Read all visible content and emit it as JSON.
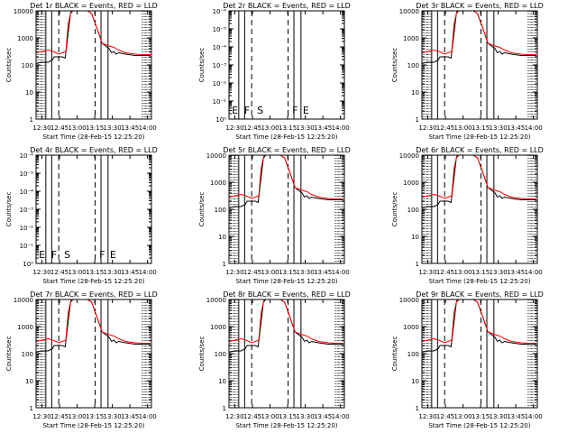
{
  "chart_data": [
    {
      "type": "line",
      "title": "Det 1r BLACK = Events, RED = LLD",
      "xlabel": "Start Time (28-Feb-15 12:25:20)",
      "ylabel": "Counts/sec",
      "xticks": [
        "12:30",
        "12:45",
        "13:00",
        "13:15",
        "13:30",
        "13:45",
        "14:00"
      ],
      "yscale": "log",
      "ylim": [
        1,
        10000
      ],
      "yticks": [
        "1",
        "10",
        "100",
        "1000",
        "10000"
      ],
      "series": [
        {
          "name": "Events",
          "color": "#000000"
        },
        {
          "name": "LLD",
          "color": "#ff0000"
        }
      ],
      "has_data": true,
      "flags": []
    },
    {
      "type": "line",
      "title": "Det 2r BLACK = Events, RED = LLD",
      "xlabel": "Start Time (28-Feb-15 12:25:20)",
      "ylabel": "Counts/sec",
      "xticks": [
        "12:30",
        "12:45",
        "13:00",
        "13:15",
        "13:30",
        "13:45",
        "14:00"
      ],
      "yscale": "log",
      "ylim": [
        1,
        1e-06
      ],
      "yticks": [
        "10⁰",
        "10⁻¹",
        "10⁻²",
        "10⁻³",
        "10⁻⁴",
        "10⁻⁵",
        "10⁻⁶"
      ],
      "series": [],
      "has_data": false,
      "flags": [
        "E",
        "F",
        "S",
        "F",
        "E"
      ]
    },
    {
      "type": "line",
      "title": "Det 3r BLACK = Events, RED = LLD",
      "xlabel": "Start Time (28-Feb-15 12:25:20)",
      "ylabel": "Counts/sec",
      "xticks": [
        "12:30",
        "12:45",
        "13:00",
        "13:15",
        "13:30",
        "13:45",
        "14:00"
      ],
      "yscale": "log",
      "ylim": [
        1,
        10000
      ],
      "yticks": [
        "1",
        "10",
        "100",
        "1000",
        "10000"
      ],
      "series": [
        {
          "name": "Events",
          "color": "#000000"
        },
        {
          "name": "LLD",
          "color": "#ff0000"
        }
      ],
      "has_data": true,
      "flags": []
    },
    {
      "type": "line",
      "title": "Det 4r BLACK = Events, RED = LLD",
      "xlabel": "Start Time (28-Feb-15 12:25:20)",
      "ylabel": "Counts/sec",
      "xticks": [
        "12:30",
        "12:45",
        "13:00",
        "13:15",
        "13:30",
        "13:45",
        "14:00"
      ],
      "yscale": "log",
      "ylim": [
        1,
        1e-06
      ],
      "yticks": [
        "10⁰",
        "10⁻¹",
        "10⁻²",
        "10⁻³",
        "10⁻⁴",
        "10⁻⁵",
        "10⁻⁶"
      ],
      "series": [],
      "has_data": false,
      "flags": [
        "E",
        "F",
        "S",
        "F",
        "E"
      ]
    },
    {
      "type": "line",
      "title": "Det 5r BLACK = Events, RED = LLD",
      "xlabel": "Start Time (28-Feb-15 12:25:20)",
      "ylabel": "Counts/sec",
      "xticks": [
        "12:30",
        "12:45",
        "13:00",
        "13:15",
        "13:30",
        "13:45",
        "14:00"
      ],
      "yscale": "log",
      "ylim": [
        1,
        10000
      ],
      "yticks": [
        "1",
        "10",
        "100",
        "1000",
        "10000"
      ],
      "series": [
        {
          "name": "Events",
          "color": "#000000"
        },
        {
          "name": "LLD",
          "color": "#ff0000"
        }
      ],
      "has_data": true,
      "flags": []
    },
    {
      "type": "line",
      "title": "Det 6r BLACK = Events, RED = LLD",
      "xlabel": "Start Time (28-Feb-15 12:25:20)",
      "ylabel": "Counts/sec",
      "xticks": [
        "12:30",
        "12:45",
        "13:00",
        "13:15",
        "13:30",
        "13:45",
        "14:00"
      ],
      "yscale": "log",
      "ylim": [
        1,
        10000
      ],
      "yticks": [
        "1",
        "10",
        "100",
        "1000",
        "10000"
      ],
      "series": [
        {
          "name": "Events",
          "color": "#000000"
        },
        {
          "name": "LLD",
          "color": "#ff0000"
        }
      ],
      "has_data": true,
      "flags": []
    },
    {
      "type": "line",
      "title": "Det 7r BLACK = Events, RED = LLD",
      "xlabel": "Start Time (28-Feb-15 12:25:20)",
      "ylabel": "Counts/sec",
      "xticks": [
        "12:30",
        "12:45",
        "13:00",
        "13:15",
        "13:30",
        "13:45",
        "14:00"
      ],
      "yscale": "log",
      "ylim": [
        1,
        10000
      ],
      "yticks": [
        "1",
        "10",
        "100",
        "1000",
        "10000"
      ],
      "series": [
        {
          "name": "Events",
          "color": "#000000"
        },
        {
          "name": "LLD",
          "color": "#ff0000"
        }
      ],
      "has_data": true,
      "flags": []
    },
    {
      "type": "line",
      "title": "Det 8r BLACK = Events, RED = LLD",
      "xlabel": "Start Time (28-Feb-15 12:25:20)",
      "ylabel": "Counts/sec",
      "xticks": [
        "12:30",
        "12:45",
        "13:00",
        "13:15",
        "13:30",
        "13:45",
        "14:00"
      ],
      "yscale": "log",
      "ylim": [
        1,
        10000
      ],
      "yticks": [
        "1",
        "10",
        "100",
        "1000",
        "10000"
      ],
      "series": [
        {
          "name": "Events",
          "color": "#000000"
        },
        {
          "name": "LLD",
          "color": "#ff0000"
        }
      ],
      "has_data": true,
      "flags": []
    },
    {
      "type": "line",
      "title": "Det 9r BLACK = Events, RED = LLD",
      "xlabel": "Start Time (28-Feb-15 12:25:20)",
      "ylabel": "Counts/sec",
      "xticks": [
        "12:30",
        "12:45",
        "13:00",
        "13:15",
        "13:30",
        "13:45",
        "14:00"
      ],
      "yscale": "log",
      "ylim": [
        1,
        10000
      ],
      "yticks": [
        "1",
        "10",
        "100",
        "1000",
        "10000"
      ],
      "series": [
        {
          "name": "Events",
          "color": "#000000"
        },
        {
          "name": "LLD",
          "color": "#ff0000"
        }
      ],
      "has_data": true,
      "flags": []
    }
  ]
}
